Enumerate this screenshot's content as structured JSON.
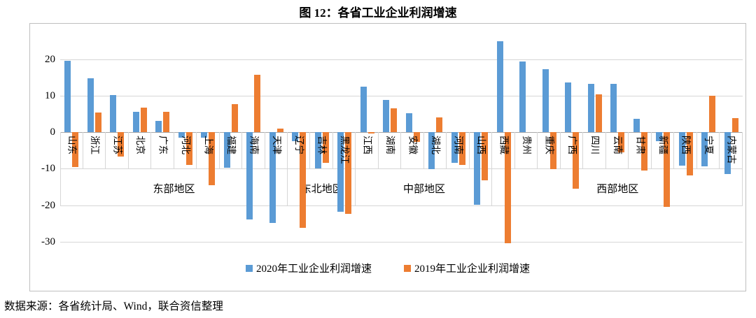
{
  "title": "图 12：各省工业企业利润增速",
  "source_note": "数据来源：各省统计局、Wind，联合资信整理",
  "colors": {
    "series_2020": "#5b9bd5",
    "series_2019": "#ed7d31",
    "gridline": "#d6d6d6"
  },
  "chart_data": {
    "type": "bar",
    "title": "图 12：各省工业企业利润增速",
    "xlabel": "",
    "ylabel": "",
    "ylim": [
      -32.9,
      27.6
    ],
    "yticks": [
      20,
      10,
      0,
      -10,
      -20,
      -30
    ],
    "grid": true,
    "legend_position": "bottom",
    "categories": [
      "山东",
      "浙江",
      "江苏",
      "北京",
      "广东",
      "河北",
      "上海",
      "福建",
      "海南",
      "天津",
      "辽宁",
      "吉林",
      "黑龙江",
      "江西",
      "湖南",
      "安徽",
      "湖北",
      "河南",
      "山西",
      "西藏",
      "贵州",
      "重庆",
      "广西",
      "四川",
      "云南",
      "甘肃",
      "新疆",
      "陕西",
      "宁夏",
      "内蒙古"
    ],
    "groups": [
      {
        "label": "东部地区",
        "count": 10
      },
      {
        "label": "东北地区",
        "count": 3
      },
      {
        "label": "中部地区",
        "count": 6
      },
      {
        "label": "西部地区",
        "count": 11
      }
    ],
    "series": [
      {
        "name": "2020年工业企业利润增速",
        "color": "#5b9bd5",
        "values": [
          19.5,
          14.8,
          10.1,
          5.5,
          3.1,
          -1.5,
          -1.5,
          -9.8,
          -23.9,
          -24.8,
          -2.4,
          -10.0,
          -21.8,
          12.4,
          8.9,
          5.2,
          -10.1,
          -8.4,
          -19.8,
          25.0,
          19.4,
          17.3,
          13.6,
          13.3,
          13.2,
          3.6,
          -2.4,
          -9.2,
          -9.3,
          -11.4
        ]
      },
      {
        "name": "2019年工业企业利润增速",
        "color": "#ed7d31",
        "values": [
          -9.5,
          5.4,
          -6.6,
          6.7,
          5.6,
          -8.9,
          -14.5,
          7.6,
          15.8,
          1.0,
          -26.2,
          -8.4,
          -22.3,
          -0.4,
          6.6,
          -2.6,
          4.0,
          -8.9,
          -13.1,
          -30.5,
          0.0,
          -10.2,
          -15.5,
          10.4,
          -5.6,
          -10.5,
          -20.4,
          -11.8,
          10.0,
          3.8
        ]
      }
    ]
  }
}
